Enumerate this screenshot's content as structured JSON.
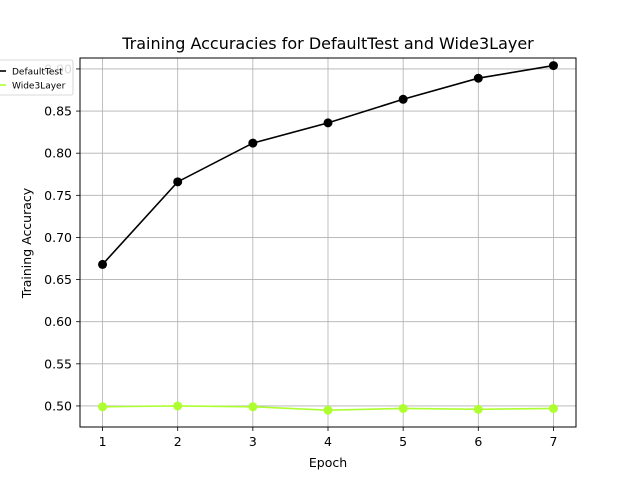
{
  "chart_data": {
    "type": "line",
    "title": "Training Accuracies for DefaultTest and Wide3Layer",
    "xlabel": "Epoch",
    "ylabel": "Training Accuracy",
    "x": [
      1,
      2,
      3,
      4,
      5,
      6,
      7
    ],
    "xlim": [
      0.7,
      7.3
    ],
    "ylim": [
      0.475,
      0.913
    ],
    "xticks": [
      1,
      2,
      3,
      4,
      5,
      6,
      7
    ],
    "xtick_labels": [
      "1",
      "2",
      "3",
      "4",
      "5",
      "6",
      "7"
    ],
    "yticks": [
      0.5,
      0.55,
      0.6,
      0.65,
      0.7,
      0.75,
      0.8,
      0.85,
      0.9
    ],
    "ytick_labels": [
      "0.50",
      "0.55",
      "0.60",
      "0.65",
      "0.70",
      "0.75",
      "0.80",
      "0.85",
      "0.90"
    ],
    "grid": true,
    "legend_position": "top-left",
    "series": [
      {
        "name": "DefaultTest",
        "color": "#000000",
        "marker": "circle",
        "values": [
          0.668,
          0.766,
          0.812,
          0.836,
          0.864,
          0.889,
          0.904
        ]
      },
      {
        "name": "Wide3Layer",
        "color": "#adff2f",
        "marker": "circle",
        "values": [
          0.499,
          0.5,
          0.499,
          0.495,
          0.497,
          0.496,
          0.497
        ]
      }
    ]
  }
}
